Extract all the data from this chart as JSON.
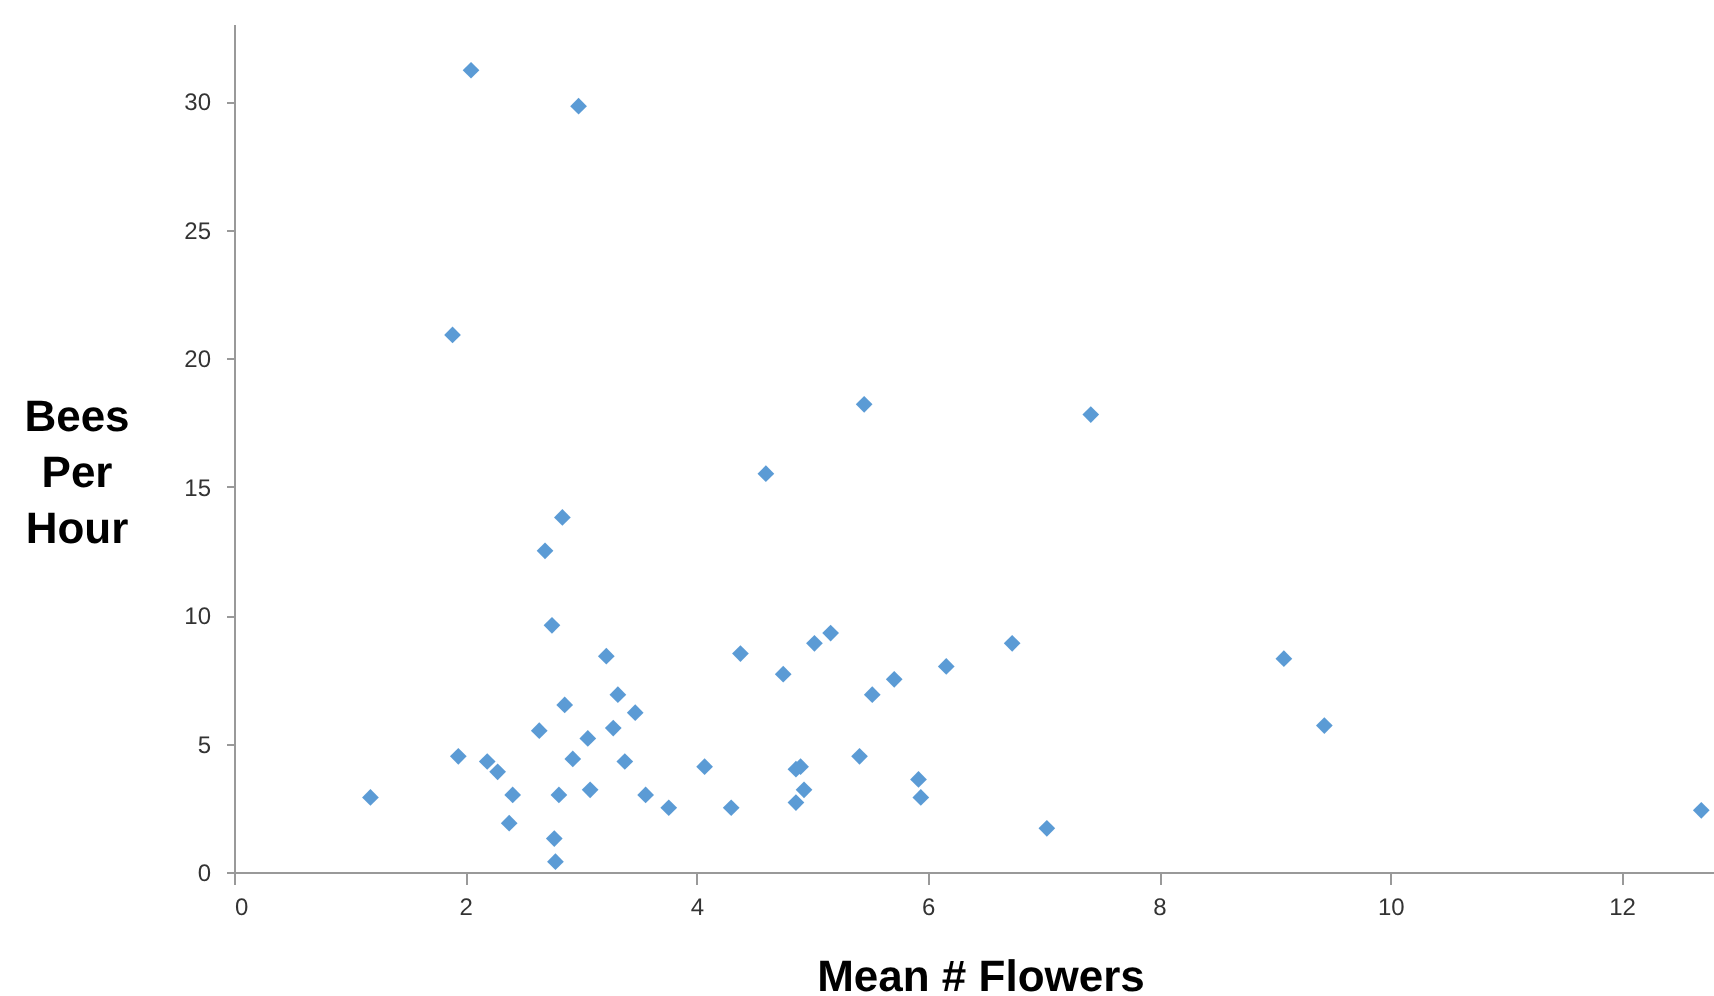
{
  "chart_data": {
    "type": "scatter",
    "xlabel": "Mean # Flowers",
    "ylabel": "Bees Per Hour",
    "x": [
      1.18,
      1.94,
      1.89,
      2.05,
      2.98,
      2.19,
      2.28,
      2.41,
      2.38,
      2.64,
      2.69,
      2.84,
      2.75,
      2.86,
      2.81,
      2.77,
      2.78,
      2.93,
      3.06,
      3.08,
      3.22,
      3.28,
      3.32,
      3.38,
      3.47,
      3.56,
      3.76,
      4.07,
      4.3,
      4.38,
      4.6,
      4.75,
      4.86,
      4.9,
      4.86,
      4.93,
      5.02,
      5.16,
      5.41,
      5.45,
      5.52,
      5.71,
      5.92,
      5.94,
      6.16,
      6.73,
      7.03,
      7.41,
      9.08,
      9.43,
      12.69
    ],
    "series": [
      {
        "color": "#5b9bd5",
        "values": [
          2.9,
          4.5,
          20.9,
          31.2,
          29.8,
          4.3,
          3.9,
          3.0,
          1.9,
          5.5,
          12.5,
          13.8,
          9.6,
          6.5,
          3.0,
          1.3,
          0.4,
          4.4,
          5.2,
          3.2,
          8.4,
          5.6,
          6.9,
          4.3,
          6.2,
          3.0,
          2.5,
          4.1,
          2.5,
          8.5,
          15.5,
          7.7,
          4.0,
          4.1,
          2.7,
          3.2,
          8.9,
          9.3,
          4.5,
          18.2,
          6.9,
          7.5,
          3.6,
          2.9,
          8.0,
          8.9,
          1.7,
          17.8,
          8.3,
          5.7,
          2.4
        ]
      }
    ],
    "marker": "diamond",
    "xlim": [
      0,
      12.8
    ],
    "ylim": [
      0,
      33
    ],
    "xticks": [
      0,
      2,
      4,
      6,
      8,
      10,
      12
    ],
    "yticks": [
      0,
      5,
      10,
      15,
      20,
      25,
      30
    ],
    "grid": false
  }
}
